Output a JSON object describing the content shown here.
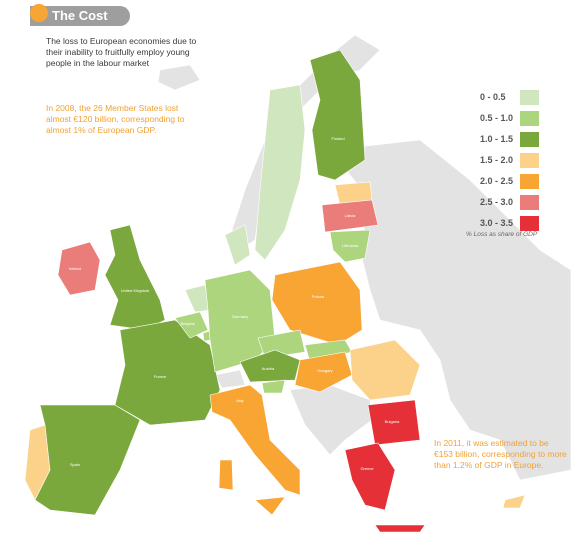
{
  "title": "The Cost",
  "subtitle": "The loss to European economies due to their inability to fruitfully employ young people in the labour market",
  "note_2008": "In 2008, the 26 Member States lost almost €120 billion, corresponding to almost 1% of European GDP.",
  "note_2011": "In 2011, it was estimated to be €153 billion, corresponding to more than 1.2% of GDP in Europe.",
  "legend": {
    "caption": "% Loss as share of GDP",
    "items": [
      {
        "label": "0 - 0.5",
        "color": "#cfe6bf"
      },
      {
        "label": "0.5 - 1.0",
        "color": "#acd57e"
      },
      {
        "label": "1.0 - 1.5",
        "color": "#7ba83c"
      },
      {
        "label": "1.5 - 2.0",
        "color": "#fcd28b"
      },
      {
        "label": "2.0 - 2.5",
        "color": "#f8a534"
      },
      {
        "label": "2.5 - 3.0",
        "color": "#ea7c79"
      },
      {
        "label": "3.0 - 3.5",
        "color": "#e43036"
      }
    ]
  },
  "background_color": "#e3e3e3",
  "countries": [
    {
      "name": "Ireland",
      "label": "Ireland",
      "color": "#ea7c79"
    },
    {
      "name": "United Kingdom",
      "label": "United Kingdom",
      "color": "#7ba83c"
    },
    {
      "name": "Portugal",
      "label": "",
      "color": "#fcd28b"
    },
    {
      "name": "Spain",
      "label": "Spain",
      "color": "#7ba83c"
    },
    {
      "name": "France",
      "label": "France",
      "color": "#7ba83c"
    },
    {
      "name": "Belgium",
      "label": "Belgium",
      "color": "#acd57e"
    },
    {
      "name": "Netherlands",
      "label": "",
      "color": "#cfe6bf"
    },
    {
      "name": "Luxembourg",
      "label": "",
      "color": "#acd57e"
    },
    {
      "name": "Germany",
      "label": "Germany",
      "color": "#acd57e"
    },
    {
      "name": "Denmark",
      "label": "",
      "color": "#cfe6bf"
    },
    {
      "name": "Sweden",
      "label": "",
      "color": "#cfe6bf"
    },
    {
      "name": "Finland",
      "label": "Finland",
      "color": "#7ba83c"
    },
    {
      "name": "Estonia",
      "label": "",
      "color": "#fcd28b"
    },
    {
      "name": "Latvia",
      "label": "Latvia",
      "color": "#ea7c79"
    },
    {
      "name": "Lithuania",
      "label": "Lithuania",
      "color": "#acd57e"
    },
    {
      "name": "Poland",
      "label": "Poland",
      "color": "#f8a534"
    },
    {
      "name": "Czech Republic",
      "label": "",
      "color": "#acd57e"
    },
    {
      "name": "Slovakia",
      "label": "",
      "color": "#acd57e"
    },
    {
      "name": "Austria",
      "label": "Austria",
      "color": "#7ba83c"
    },
    {
      "name": "Slovenia",
      "label": "",
      "color": "#acd57e"
    },
    {
      "name": "Hungary",
      "label": "Hungary",
      "color": "#f8a534"
    },
    {
      "name": "Italy",
      "label": "Italy",
      "color": "#f8a534"
    },
    {
      "name": "Romania",
      "label": "",
      "color": "#fcd28b"
    },
    {
      "name": "Bulgaria",
      "label": "Bulgaria",
      "color": "#e43036"
    },
    {
      "name": "Greece",
      "label": "Greece",
      "color": "#e43036"
    },
    {
      "name": "Cyprus",
      "label": "",
      "color": "#fcd28b"
    }
  ]
}
